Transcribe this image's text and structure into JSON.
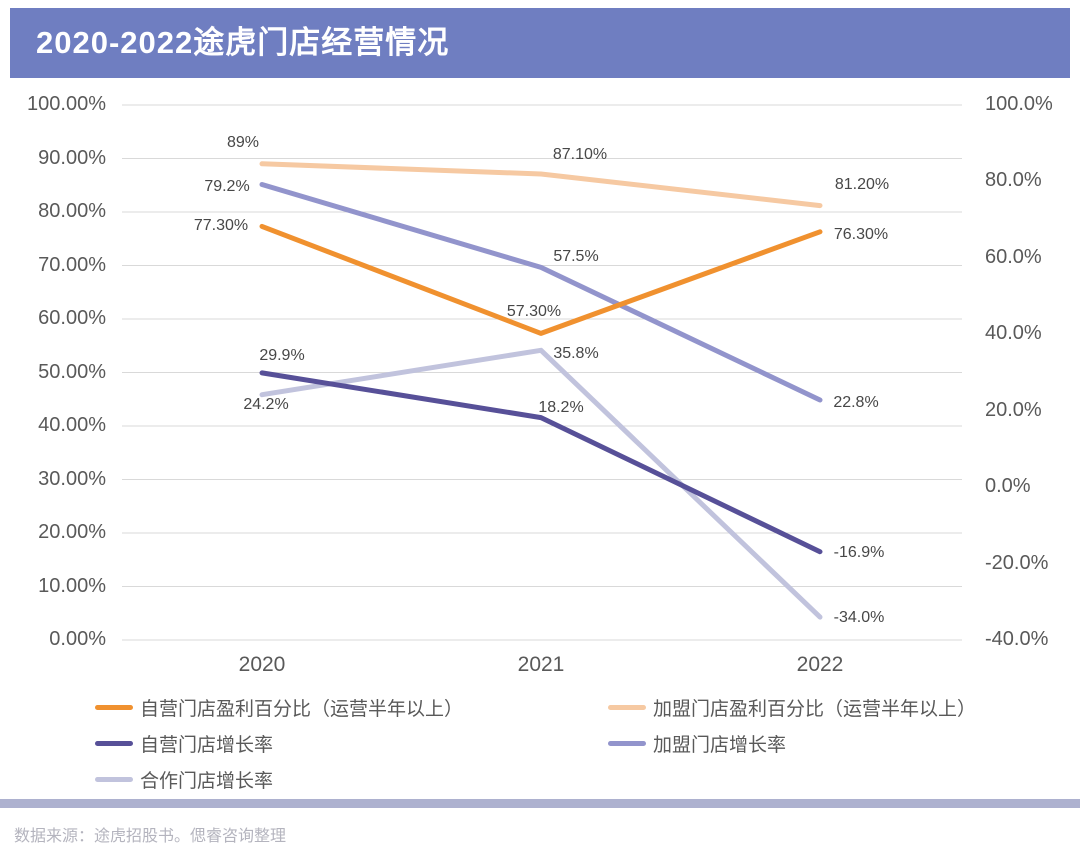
{
  "header": {
    "title": "2020-2022途虎门店经营情况",
    "bg_color": "#6F7EC1",
    "text_color": "#FFFFFF"
  },
  "footer": {
    "text": "数据来源：途虎招股书。偲睿咨询整理",
    "divider_color": "#ADB1CF",
    "text_color": "#B4B4BE"
  },
  "chart_data": {
    "type": "line",
    "title": "2020-2022途虎门店经营情况",
    "categories": [
      "2020",
      "2021",
      "2022"
    ],
    "grid": true,
    "gridline_color": "#D9D9D9",
    "tick_color": "#595959",
    "data_label_color": "#474747",
    "legend_position": "bottom",
    "axes": {
      "left": {
        "min": 0,
        "max": 100,
        "ticks": [
          {
            "value": 100,
            "label": "100.00%"
          },
          {
            "value": 90,
            "label": "90.00%"
          },
          {
            "value": 80,
            "label": "80.00%"
          },
          {
            "value": 70,
            "label": "70.00%"
          },
          {
            "value": 60,
            "label": "60.00%"
          },
          {
            "value": 50,
            "label": "50.00%"
          },
          {
            "value": 40,
            "label": "40.00%"
          },
          {
            "value": 30,
            "label": "30.00%"
          },
          {
            "value": 20,
            "label": "20.00%"
          },
          {
            "value": 10,
            "label": "10.00%"
          },
          {
            "value": 0,
            "label": "0.00%"
          }
        ]
      },
      "right": {
        "min": -40,
        "max": 100,
        "ticks": [
          {
            "value": 100,
            "label": "100.0%"
          },
          {
            "value": 80,
            "label": "80.0%"
          },
          {
            "value": 60,
            "label": "60.0%"
          },
          {
            "value": 40,
            "label": "40.0%"
          },
          {
            "value": 20,
            "label": "20.0%"
          },
          {
            "value": 0,
            "label": "0.0%"
          },
          {
            "value": -20,
            "label": "-20.0%"
          },
          {
            "value": -40,
            "label": "-40.0%"
          }
        ]
      }
    },
    "series": [
      {
        "name": "自营门店盈利百分比（运营半年以上）",
        "color": "#F0912F",
        "axis": "left",
        "z": 5,
        "legend_col": 0,
        "legend_row": 0,
        "values": [
          77.3,
          57.3,
          76.3
        ],
        "point_labels": [
          "77.30%",
          "57.30%",
          "76.30%"
        ],
        "label_offsets": [
          [
            -41,
            2
          ],
          [
            -7,
            -19
          ],
          [
            41,
            5
          ]
        ]
      },
      {
        "name": "加盟门店盈利百分比（运营半年以上）",
        "color": "#F6C9A2",
        "axis": "left",
        "z": 1,
        "legend_col": 1,
        "legend_row": 0,
        "values": [
          89,
          87.1,
          81.2
        ],
        "point_labels": [
          "89%",
          "87.10%",
          "81.20%"
        ],
        "label_offsets": [
          [
            -19,
            -19
          ],
          [
            39,
            -17
          ],
          [
            42,
            -19
          ]
        ]
      },
      {
        "name": "自营门店增长率",
        "color": "#575098",
        "axis": "right",
        "z": 4,
        "legend_col": 0,
        "legend_row": 1,
        "values": [
          29.9,
          18.2,
          -16.9
        ],
        "point_labels": [
          "29.9%",
          "18.2%",
          "-16.9%"
        ],
        "label_offsets": [
          [
            20,
            -15
          ],
          [
            20,
            -8
          ],
          [
            39,
            3
          ]
        ]
      },
      {
        "name": "加盟门店增长率",
        "color": "#9294CC",
        "axis": "right",
        "z": 2,
        "legend_col": 1,
        "legend_row": 1,
        "values": [
          79.2,
          57.5,
          22.8
        ],
        "point_labels": [
          "79.2%",
          "57.5%",
          "22.8%"
        ],
        "label_offsets": [
          [
            -35,
            5
          ],
          [
            35,
            -8
          ],
          [
            36,
            5
          ]
        ]
      },
      {
        "name": "合作门店增长率",
        "color": "#C1C3DD",
        "axis": "right",
        "z": 3,
        "legend_col": 0,
        "legend_row": 2,
        "values": [
          24.2,
          35.8,
          -34.0
        ],
        "point_labels": [
          "24.2%",
          "35.8%",
          "-34.0%"
        ],
        "label_offsets": [
          [
            4,
            12
          ],
          [
            35,
            6
          ],
          [
            39,
            3
          ]
        ]
      }
    ]
  }
}
